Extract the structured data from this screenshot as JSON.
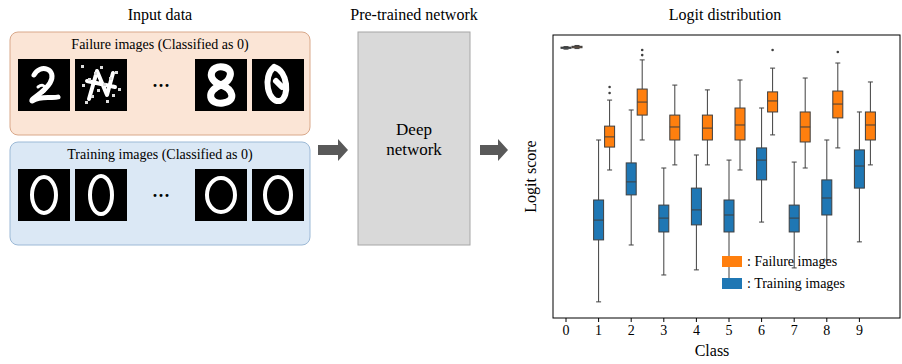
{
  "headers": {
    "input": "Input data",
    "network": "Pre-trained network"
  },
  "groups": [
    {
      "label": "Failure images (Classified as 0)",
      "ellipsis": "···"
    },
    {
      "label": "Training images (Classified as 0)",
      "ellipsis": "···"
    }
  ],
  "network": {
    "label_lines": [
      "Deep",
      "network"
    ]
  },
  "chart_data": {
    "type": "box",
    "title": "Logit distribution",
    "x_label": "Class",
    "y_label": "Logit score",
    "categories": [
      "0",
      "1",
      "2",
      "3",
      "4",
      "5",
      "6",
      "7",
      "8",
      "9"
    ],
    "ylim": [
      0,
      100
    ],
    "tick_labels": "x",
    "legend": "lower right",
    "series": [
      {
        "name": ": Failure images",
        "color": "#ff7f0e",
        "whislo": [
          95.2,
          52.3,
          62.9,
          54.1,
          54.1,
          52.3,
          64.7,
          53.0,
          60.1,
          54.1
        ],
        "q1": [
          95.5,
          60.4,
          71.7,
          62.9,
          62.9,
          62.9,
          72.8,
          62.2,
          70.7,
          62.9
        ],
        "med": [
          95.8,
          64.0,
          76.3,
          67.5,
          67.1,
          68.2,
          76.7,
          67.5,
          75.6,
          68.2
        ],
        "q3": [
          96.0,
          67.8,
          80.9,
          71.7,
          71.7,
          74.2,
          79.9,
          72.8,
          80.2,
          72.8
        ],
        "whishi": [
          96.3,
          77.0,
          91.2,
          82.3,
          80.6,
          84.1,
          88.3,
          84.8,
          90.1,
          83.4
        ],
        "outliers": [
          [],
          [
            79.5,
            81.6
          ],
          [
            92.9,
            94.7
          ],
          [],
          [],
          [],
          [
            94.7
          ],
          [],
          [
            94.0
          ],
          []
        ]
      },
      {
        "name": ": Training images",
        "color": "#1f77b4",
        "whislo": [
          95.0,
          5.7,
          25.8,
          15.2,
          17.0,
          11.7,
          33.9,
          17.7,
          20.5,
          26.9
        ],
        "q1": [
          95.3,
          27.6,
          43.5,
          30.4,
          32.9,
          30.4,
          48.8,
          30.4,
          36.4,
          45.9
        ],
        "med": [
          95.5,
          34.6,
          48.1,
          35.3,
          38.2,
          36.4,
          55.8,
          35.3,
          42.4,
          53.7
        ],
        "q3": [
          95.7,
          41.7,
          54.8,
          39.9,
          45.9,
          41.7,
          60.1,
          39.9,
          48.8,
          59.4
        ],
        "whishi": [
          95.9,
          62.9,
          73.5,
          53.0,
          57.6,
          55.8,
          74.2,
          55.1,
          62.9,
          72.8
        ],
        "outliers": [
          [],
          [],
          [],
          [],
          [],
          [],
          [],
          [],
          [],
          []
        ]
      }
    ]
  }
}
